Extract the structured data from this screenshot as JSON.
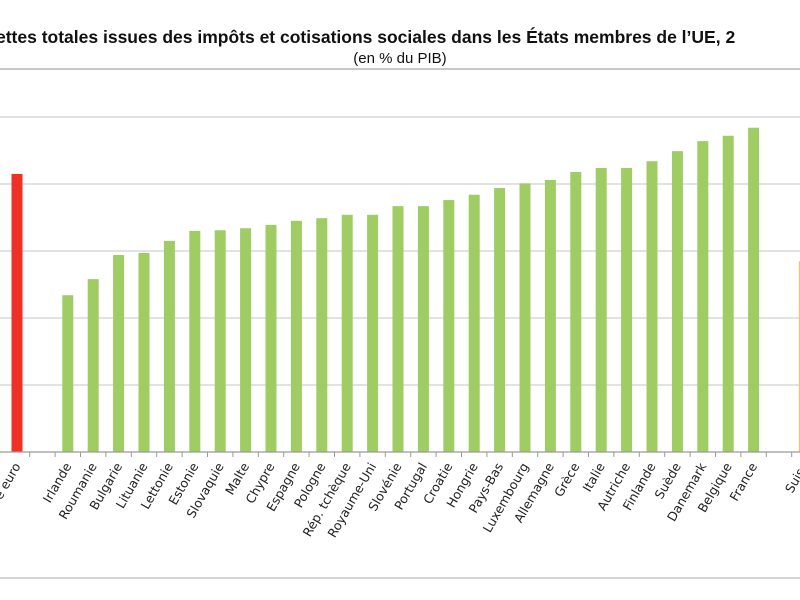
{
  "chart_data": {
    "type": "bar",
    "title": "ettes totales issues des impôts et cotisations sociales dans les États membres de l’UE, 2",
    "subtitle": "(en % du PIB)",
    "xlabel": "",
    "ylabel": "",
    "ylim": [
      0,
      50
    ],
    "grid": true,
    "legend": "none",
    "colors": {
      "euro_area": "#ee3124",
      "member": "#9fcc63",
      "non_member": "#f5c26b",
      "grid": "#d0d0d0"
    },
    "categories": [
      "e euro",
      "",
      "Irlande",
      "Roumanie",
      "Bulgarie",
      "Lituanie",
      "Lettonie",
      "Estonie",
      "Slovaquie",
      "Malte",
      "Chypre",
      "Espagne",
      "Pologne",
      "Rép. tchèque",
      "Royaume-Uni",
      "Slovénie",
      "Portugal",
      "Croatie",
      "Hongrie",
      "Pays-Bas",
      "Luxembourg",
      "Allemagne",
      "Grèce",
      "Italie",
      "Autriche",
      "Finlande",
      "Suède",
      "Danemark",
      "Belgique",
      "France",
      "",
      "Suiss"
    ],
    "values": [
      41.5,
      null,
      23.4,
      25.8,
      29.4,
      29.7,
      31.5,
      33.0,
      33.1,
      33.4,
      33.9,
      34.5,
      34.9,
      35.4,
      35.4,
      36.7,
      36.7,
      37.6,
      38.4,
      39.4,
      40.1,
      40.6,
      41.8,
      42.4,
      42.4,
      43.4,
      44.9,
      46.4,
      47.2,
      48.4,
      null,
      28.5
    ],
    "groups": [
      "euro_area",
      "",
      "member",
      "member",
      "member",
      "member",
      "member",
      "member",
      "member",
      "member",
      "member",
      "member",
      "member",
      "member",
      "member",
      "member",
      "member",
      "member",
      "member",
      "member",
      "member",
      "member",
      "member",
      "member",
      "member",
      "member",
      "member",
      "member",
      "member",
      "member",
      "",
      "non_member"
    ]
  }
}
